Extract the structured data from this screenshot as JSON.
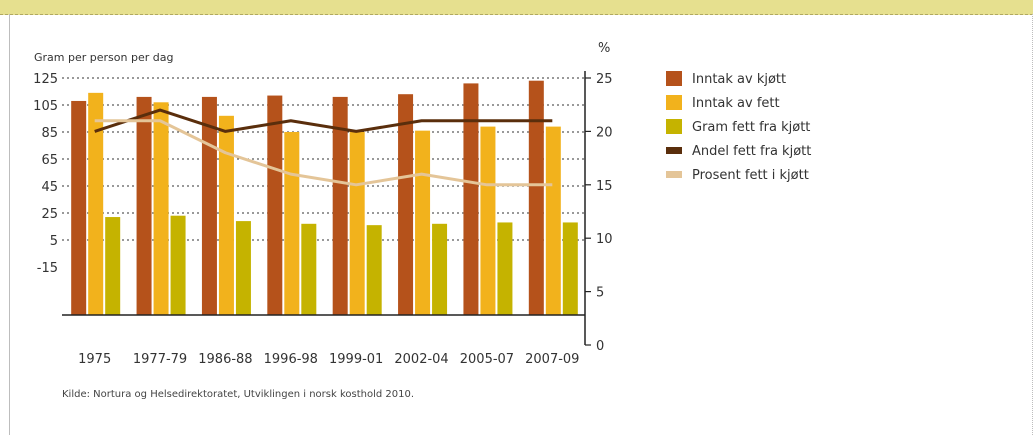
{
  "chart_data": {
    "type": "bar",
    "left_axis": {
      "title": "Gram per person per dag",
      "min": -15,
      "max": 125,
      "ticks": [
        -15,
        5,
        25,
        45,
        65,
        85,
        105,
        125
      ]
    },
    "right_axis": {
      "title": "%",
      "min": 0,
      "max": 25,
      "ticks": [
        0,
        5,
        10,
        15,
        20,
        25
      ]
    },
    "categories": [
      "1975",
      "1977-79",
      "1986-88",
      "1996-98",
      "1999-01",
      "2002-04",
      "2005-07",
      "2007-09"
    ],
    "series": [
      {
        "name": "Inntak av kjøtt",
        "kind": "bar",
        "axis": "left",
        "color": "#b5521b",
        "values": [
          108,
          111,
          111,
          112,
          111,
          113,
          121,
          123
        ]
      },
      {
        "name": "Inntak av fett",
        "kind": "bar",
        "axis": "left",
        "color": "#f2b21c",
        "values": [
          114,
          107,
          97,
          85,
          85,
          86,
          89,
          89
        ]
      },
      {
        "name": "Gram fett fra kjøtt",
        "kind": "bar",
        "axis": "left",
        "color": "#c5b300",
        "values": [
          22,
          23,
          19,
          17,
          16,
          17,
          18,
          18
        ]
      },
      {
        "name": "Andel fett fra kjøtt",
        "kind": "line",
        "axis": "right",
        "color": "#5a2e0c",
        "values": [
          20,
          22,
          20,
          21,
          20,
          21,
          21,
          21
        ]
      },
      {
        "name": "Prosent fett i kjøtt",
        "kind": "line",
        "axis": "right",
        "color": "#e4c598",
        "values": [
          21,
          21,
          18,
          16,
          15,
          16,
          15,
          15
        ]
      }
    ],
    "grid": "dotted horizontal lines",
    "legend": "right"
  },
  "source": "Kilde: Nortura og Helsedirektoratet, Utviklingen i norsk kosthold 2010."
}
